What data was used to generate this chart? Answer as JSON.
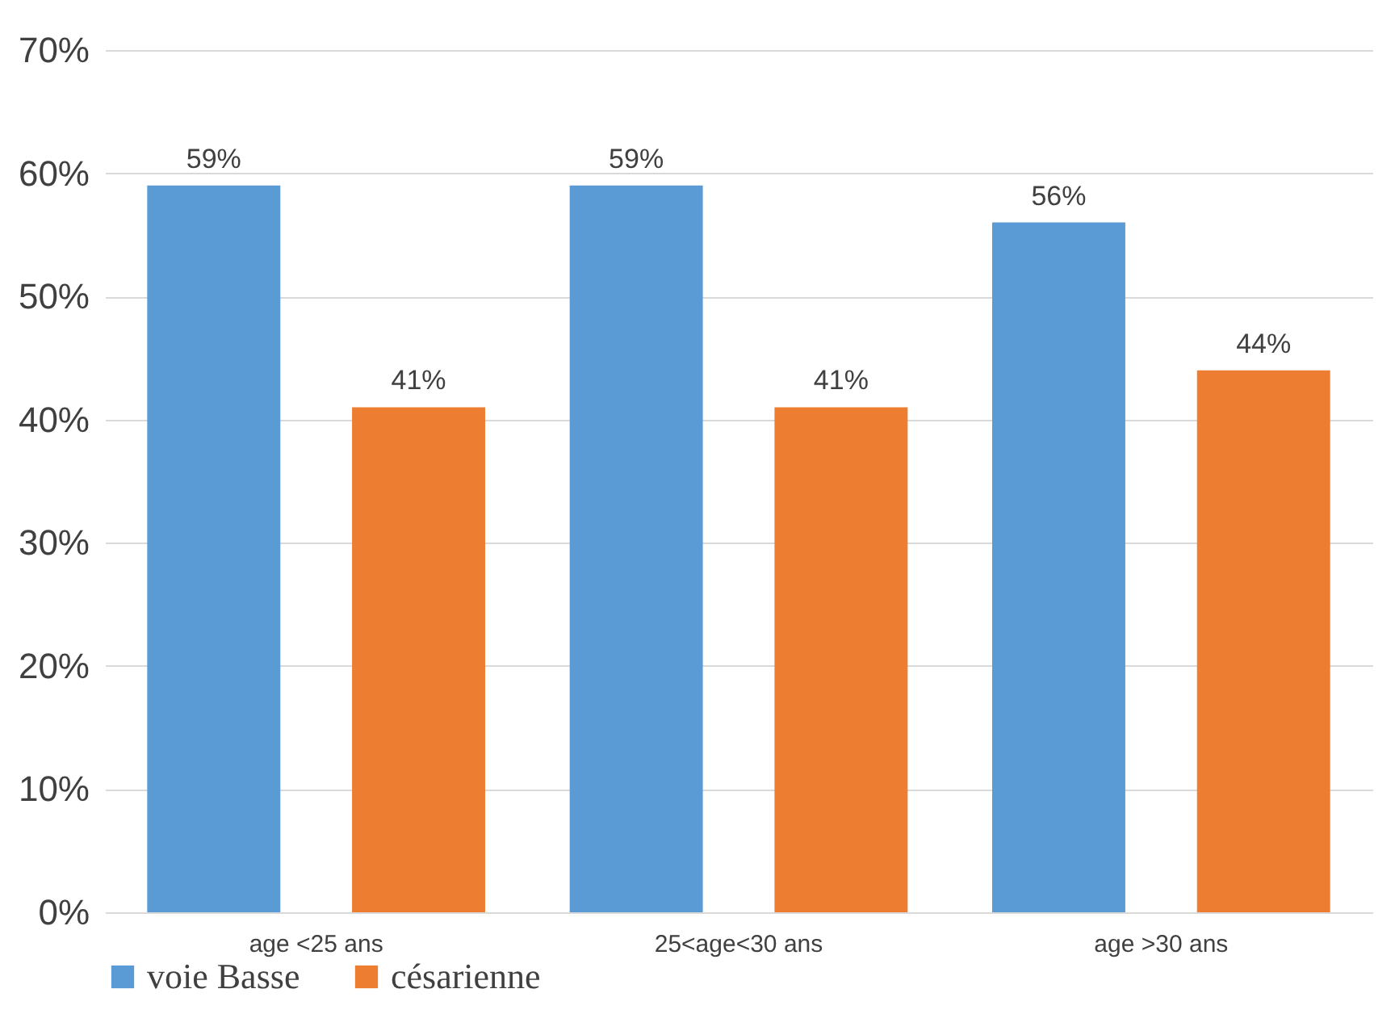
{
  "chart_data": {
    "type": "bar",
    "categories": [
      "age <25 ans",
      "25<age<30 ans",
      "age >30 ans"
    ],
    "series": [
      {
        "name": "voie Basse",
        "color": "#5b9bd5",
        "values": [
          59,
          59,
          56
        ],
        "value_labels": [
          "59%",
          "59%",
          "56%"
        ]
      },
      {
        "name": "césarienne",
        "color": "#ed7d31",
        "values": [
          41,
          41,
          44
        ],
        "value_labels": [
          "41%",
          "41%",
          "44%"
        ]
      }
    ],
    "ylim": [
      0,
      70
    ],
    "yticks": [
      {
        "value": 0,
        "label": "0%"
      },
      {
        "value": 10,
        "label": "10%"
      },
      {
        "value": 20,
        "label": "20%"
      },
      {
        "value": 30,
        "label": "30%"
      },
      {
        "value": 40,
        "label": "40%"
      },
      {
        "value": 50,
        "label": "50%"
      },
      {
        "value": 60,
        "label": "60%"
      },
      {
        "value": 70,
        "label": "70%"
      }
    ],
    "grid": "y",
    "legend": "bottom"
  }
}
